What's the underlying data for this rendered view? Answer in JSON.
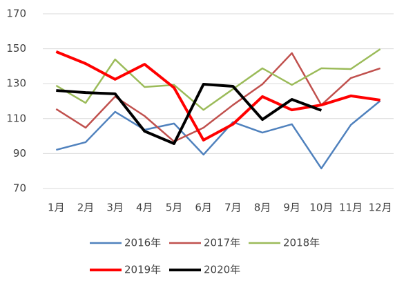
{
  "chart_data": {
    "type": "line",
    "categories": [
      "1月",
      "2月",
      "3月",
      "4月",
      "5月",
      "6月",
      "7月",
      "8月",
      "9月",
      "10月",
      "11月",
      "12月"
    ],
    "series": [
      {
        "name": "2016年",
        "color": "#4f81bd",
        "width": 2.5,
        "values": [
          92.1,
          96.5,
          113.9,
          103.6,
          107.2,
          89.4,
          108,
          102,
          106.8,
          81.5,
          106.4,
          120.2
        ]
      },
      {
        "name": "2017年",
        "color": "#c0504d",
        "width": 2.5,
        "values": [
          115.5,
          104.8,
          122.6,
          111.5,
          96.9,
          104.8,
          117.8,
          129.7,
          147.5,
          117.8,
          133.2,
          138.8
        ]
      },
      {
        "name": "2018年",
        "color": "#9bbb59",
        "width": 2.5,
        "values": [
          128.9,
          119,
          143.9,
          128.1,
          129.3,
          115,
          126.9,
          138.8,
          129.3,
          138.8,
          138.4,
          149.8
        ]
      },
      {
        "name": "2019年",
        "color": "#ff0000",
        "width": 4,
        "values": [
          148.3,
          141.5,
          132.5,
          141.1,
          127.7,
          97.7,
          106.8,
          122.6,
          115,
          117.8,
          123,
          120.6
        ]
      },
      {
        "name": "2020年",
        "color": "#000000",
        "width": 4,
        "values": [
          126.1,
          124.9,
          124.2,
          102.8,
          95.7,
          129.7,
          128.5,
          109.5,
          121,
          114.7,
          null,
          null
        ]
      }
    ],
    "ylim": [
      70,
      170
    ],
    "yticks": [
      70,
      90,
      110,
      130,
      150,
      170
    ],
    "grid": true
  }
}
